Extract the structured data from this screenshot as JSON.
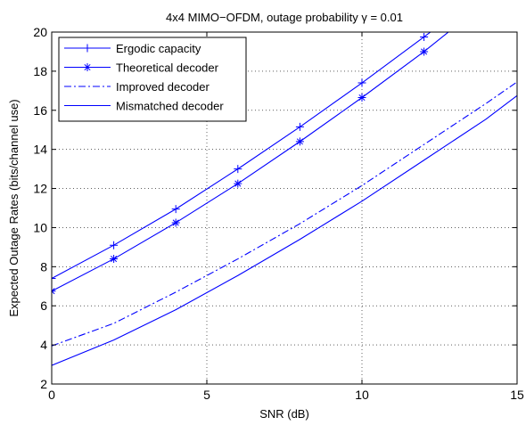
{
  "chart_data": {
    "type": "line",
    "title": "4x4 MIMO−OFDM, outage probability γ = 0.01",
    "xlabel": "SNR (dB)",
    "ylabel": "Expected Outage Rates (bits/channel use)",
    "xlim": [
      0,
      15
    ],
    "ylim": [
      2,
      20
    ],
    "xticks": [
      "0",
      "5",
      "10",
      "15"
    ],
    "yticks": [
      "2",
      "4",
      "6",
      "8",
      "10",
      "12",
      "14",
      "16",
      "18",
      "20"
    ],
    "grid": true,
    "legend_position": "top-left",
    "series": [
      {
        "name": "Ergodic capacity",
        "color": "#0000ff",
        "line_style": "solid",
        "marker": "plus",
        "x": [
          0,
          2,
          4,
          6,
          8,
          10,
          12,
          12.7
        ],
        "y": [
          7.4,
          9.1,
          10.95,
          13.0,
          15.15,
          17.4,
          19.75,
          20.6
        ]
      },
      {
        "name": "Theoretical decoder",
        "color": "#0000ff",
        "line_style": "solid",
        "marker": "asterisk",
        "x": [
          0,
          2,
          4,
          6,
          8,
          10,
          12,
          13.1
        ],
        "y": [
          6.75,
          8.4,
          10.25,
          12.25,
          14.4,
          16.65,
          19.0,
          20.4
        ]
      },
      {
        "name": "Improved decoder",
        "color": "#0000ff",
        "line_style": "dashdot",
        "marker": "none",
        "x": [
          0,
          2,
          4,
          6,
          8,
          10,
          12,
          14,
          15
        ],
        "y": [
          3.95,
          5.1,
          6.7,
          8.4,
          10.2,
          12.15,
          14.25,
          16.35,
          17.45
        ]
      },
      {
        "name": "Mismatched decoder",
        "color": "#0000ff",
        "line_style": "solid",
        "marker": "none",
        "x": [
          0,
          2,
          4,
          6,
          8,
          10,
          12,
          14,
          15
        ],
        "y": [
          2.95,
          4.25,
          5.8,
          7.55,
          9.4,
          11.35,
          13.45,
          15.55,
          16.75
        ]
      }
    ]
  }
}
